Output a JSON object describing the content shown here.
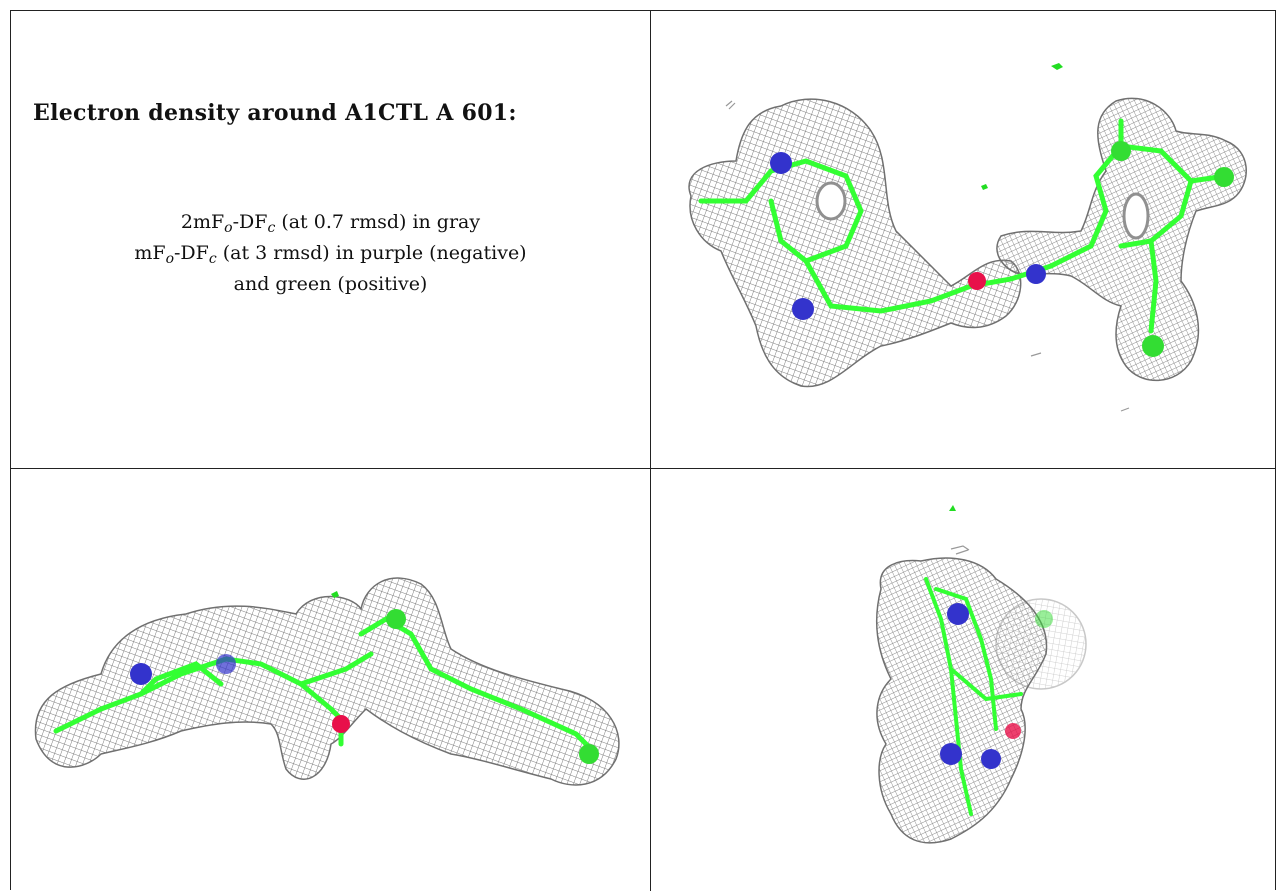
{
  "header": {
    "title": "Electron density around A1CTL A 601:"
  },
  "legend": {
    "line1_a": "2mF",
    "line1_sub_o": "o",
    "line1_b": "-DF",
    "line1_sub_c": "c",
    "line1_rest": " (at 0.7 rmsd) in gray",
    "line2_a": "mF",
    "line2_sub_o": "o",
    "line2_b": "-DF",
    "line2_sub_c": "c",
    "line2_rest": " (at 3 rmsd) in purple (negative)",
    "line3": "and green (positive)"
  },
  "panels": [
    {
      "view": "top view of ligand in density mesh"
    },
    {
      "view": "side view of ligand in density mesh"
    },
    {
      "view": "end-on view of ligand in density mesh"
    }
  ],
  "colors": {
    "mesh": "#8c8c8c",
    "carbon": "#33ff33",
    "nitrogen": "#3333cc",
    "oxygen": "#e8104a",
    "positive_density": "#22dd22"
  }
}
